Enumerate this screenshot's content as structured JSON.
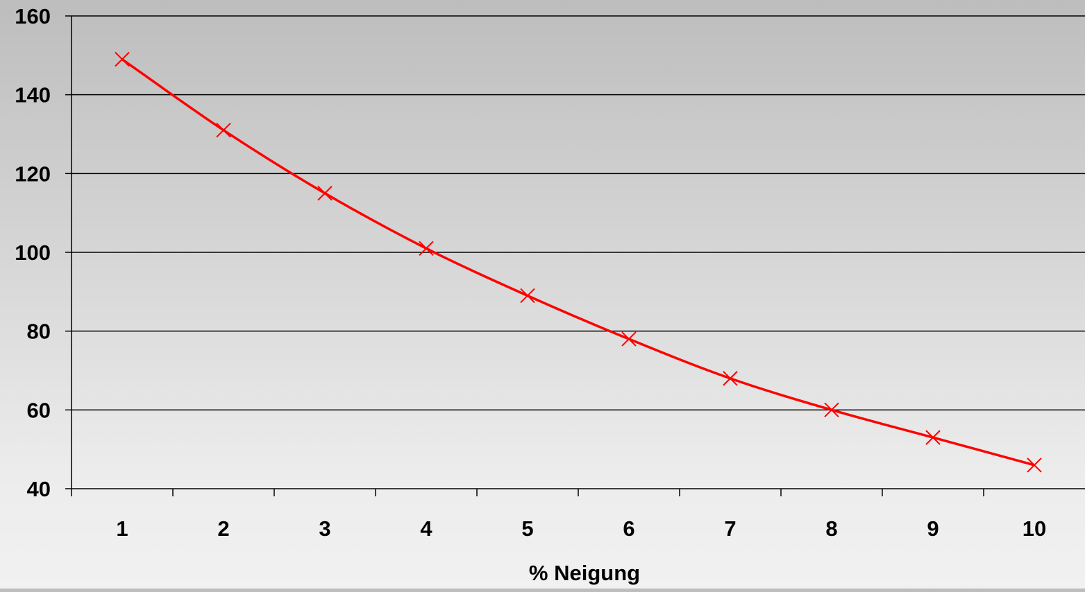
{
  "chart_data": {
    "type": "line",
    "title": "",
    "xlabel": "% Neigung",
    "ylabel": "",
    "categories": [
      "1",
      "2",
      "3",
      "4",
      "5",
      "6",
      "7",
      "8",
      "9",
      "10"
    ],
    "series": [
      {
        "values": [
          149,
          131,
          115,
          101,
          89,
          78,
          68,
          60,
          53,
          46
        ],
        "color": "#ff0000",
        "marker": "x"
      }
    ],
    "y_ticks": [
      40,
      60,
      80,
      100,
      120,
      140,
      160
    ],
    "ylim": [
      40,
      160
    ],
    "grid": "horizontal",
    "legend": "none"
  }
}
